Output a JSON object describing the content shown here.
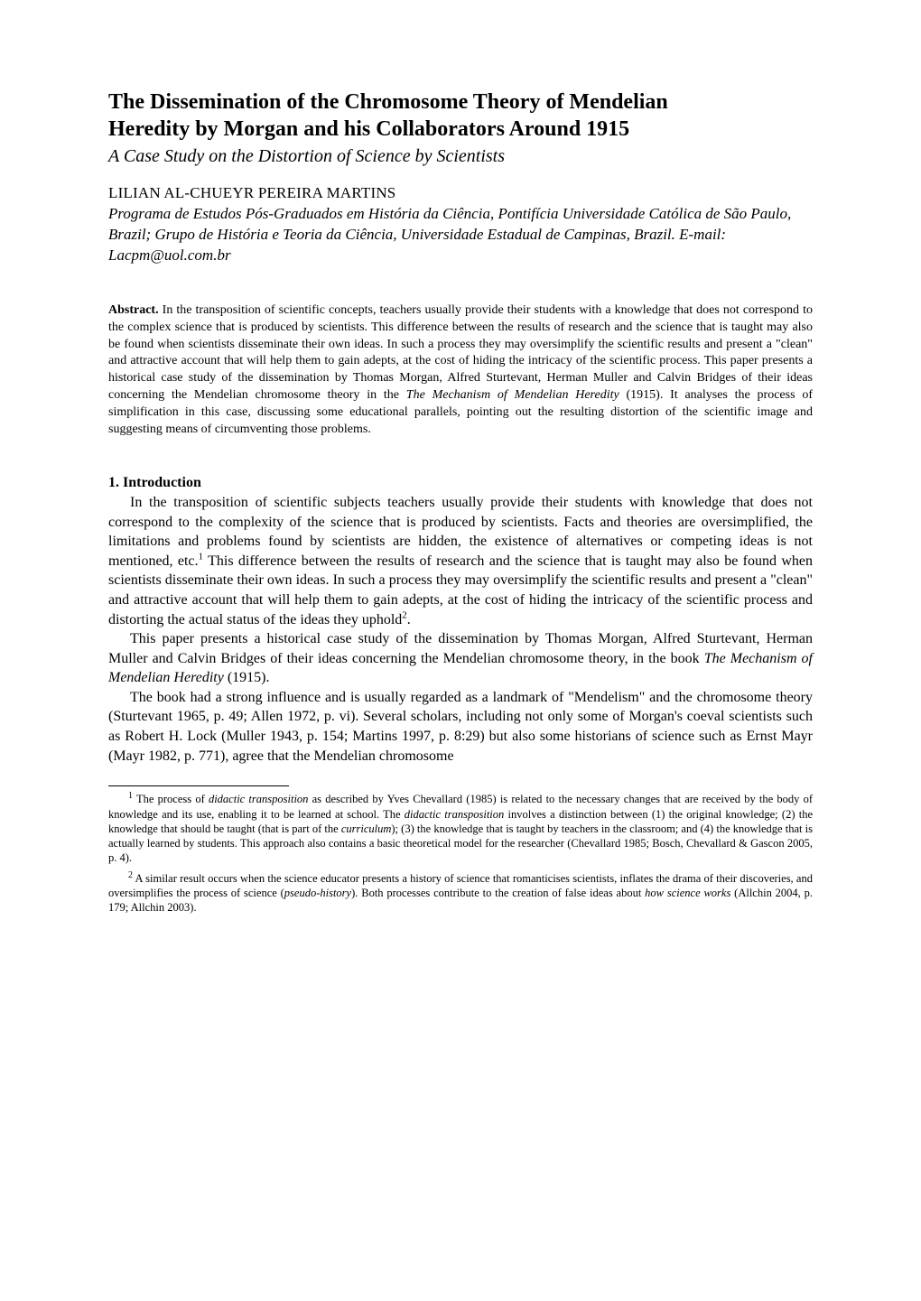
{
  "title_line1": "The Dissemination of the Chromosome Theory of Mendelian",
  "title_line2": "Heredity by Morgan and his Collaborators Around 1915",
  "subtitle": "A Case Study on the Distortion of Science by Scientists",
  "author": "LILIAN AL-CHUEYR PEREIRA MARTINS",
  "affiliation": "Programa de Estudos Pós-Graduados em História da Ciência, Pontifícia Universidade Católica de São Paulo, Brazil; Grupo de História e Teoria da Ciência, Universidade Estadual de Campinas, Brazil. E-mail: Lacpm@uol.com.br",
  "abstract_label": "Abstract.",
  "abstract_body": " In the transposition of scientific concepts, teachers usually provide their students with a knowledge that does not correspond to the complex science that is produced by scientists. This difference between the results of research and the science that is taught may also be found when scientists disseminate their own ideas. In such a process they may oversimplify the scientific results and present a \"clean\" and attractive account that will help them to gain adepts, at the cost of hiding the intricacy of the scientific process. This paper presents a historical case study of the dissemination by Thomas Morgan, Alfred Sturtevant, Herman Muller and Calvin Bridges of their ideas concerning the Mendelian chromosome theory in the ",
  "abstract_ital": "The Mechanism of Mendelian Heredity",
  "abstract_body2": " (1915). It analyses the process of simplification in this case, discussing some educational parallels, pointing out the resulting distortion of the scientific image and suggesting means of circumventing those problems.",
  "section1_heading": "1. Introduction",
  "para1_a": "In the transposition of scientific subjects teachers usually provide their students with knowledge that does not correspond to the complexity of the science that is produced by scientists. Facts and theories are oversimplified, the limitations and problems found by scientists are hidden, the existence of alternatives or competing ideas is not mentioned, etc.",
  "para1_sup1": "1",
  "para1_b": " This difference between the results of research and the science that is taught may also be found when scientists disseminate their own ideas. In such a process they may oversimplify the scientific results and present a \"clean\" and attractive account that will help them to gain adepts, at the cost of hiding the intricacy of the scientific process and distorting the actual status of the ideas they uphold",
  "para1_sup2": "2",
  "para1_c": ".",
  "para2_a": "This paper presents a historical case study of the dissemination by Thomas Morgan, Alfred Sturtevant, Herman Muller and Calvin Bridges of their ideas concerning the Mendelian chromosome theory, in the book ",
  "para2_ital": "The Mechanism of Mendelian Heredity",
  "para2_b": " (1915).",
  "para3": "The book had a strong influence and is usually regarded as a landmark of \"Mendelism\" and the chromosome theory (Sturtevant 1965, p. 49; Allen 1972, p. vi). Several scholars, including not only some of Morgan's coeval scientists such as Robert H. Lock (Muller 1943, p. 154; Martins 1997, p. 8:29) but also some historians of science such as Ernst Mayr (Mayr 1982, p. 771), agree that the Mendelian chromosome",
  "footnote1_sup": "1",
  "footnote1_a": " The process of ",
  "footnote1_ital1": "didactic transposition",
  "footnote1_b": " as described by Yves Chevallard (1985) is related to the necessary changes that are received by the body of knowledge and its use, enabling it to be learned at school. The ",
  "footnote1_ital2": "didactic transposition",
  "footnote1_c": " involves a distinction between (1) the original knowledge; (2) the knowledge that should be taught (that is part of the ",
  "footnote1_ital3": "curriculum",
  "footnote1_d": "); (3) the knowledge that is taught by teachers in the classroom; and (4) the knowledge that is actually learned by students. This approach also contains a basic theoretical model for the researcher (Chevallard 1985; Bosch, Chevallard & Gascon 2005, p. 4).",
  "footnote2_sup": "2",
  "footnote2_a": " A similar result occurs when the science educator presents a history of science that romanticises scientists, inflates the drama of their discoveries, and oversimplifies the process of science (",
  "footnote2_ital1": "pseudo-history",
  "footnote2_b": "). Both processes contribute to the creation of false ideas about ",
  "footnote2_ital2": "how science works",
  "footnote2_c": " (Allchin 2004, p. 179; Allchin 2003)."
}
